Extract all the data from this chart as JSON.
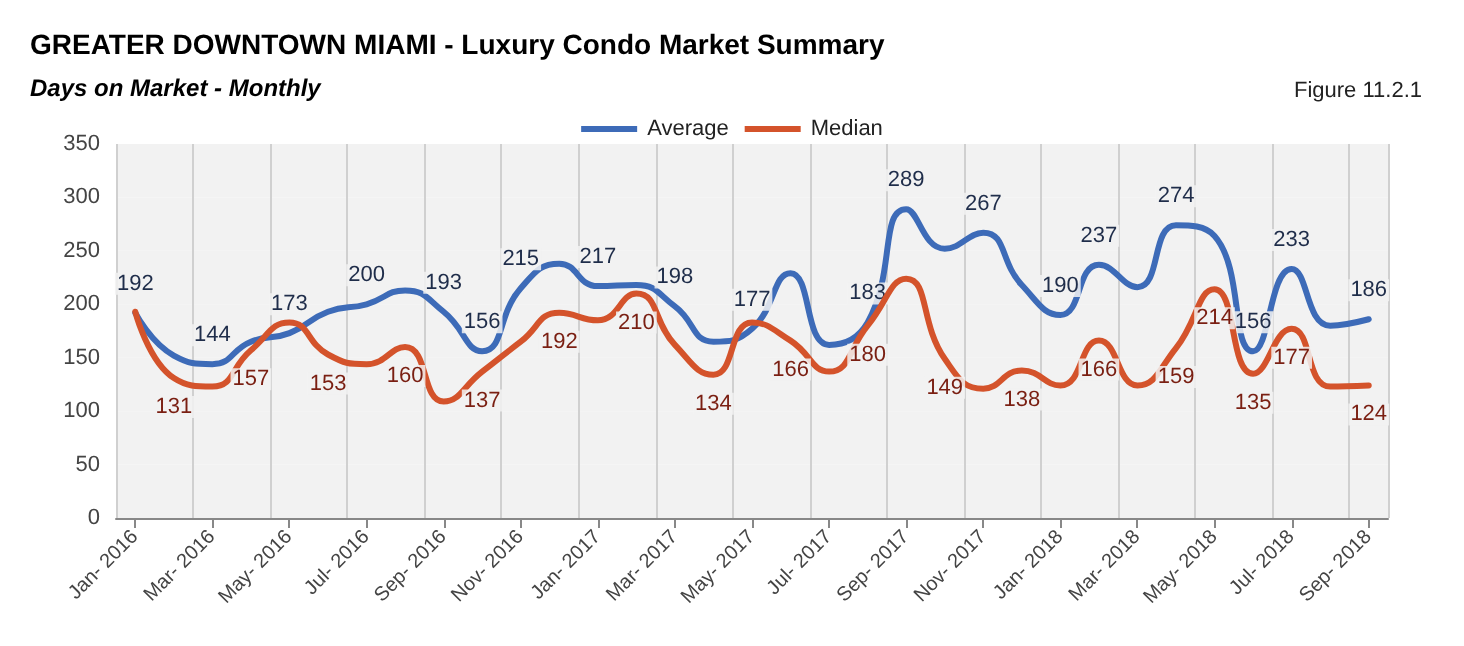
{
  "chart_data": {
    "type": "line",
    "title": "GREATER DOWNTOWN MIAMI - Luxury Condo Market Summary",
    "subtitle": "Days on Market - Monthly",
    "annotations": [
      "Figure 11.2.1"
    ],
    "categories": [
      "Jan- 2016",
      null,
      "Mar- 2016",
      null,
      "May- 2016",
      null,
      "Jul- 2016",
      null,
      "Sep- 2016",
      null,
      "Nov- 2016",
      null,
      "Jan- 2017",
      null,
      "Mar- 2017",
      null,
      "May- 2017",
      null,
      "Jul- 2017",
      null,
      "Sep- 2017",
      null,
      "Nov- 2017",
      null,
      "Jan- 2018",
      null,
      "Mar- 2018",
      null,
      "May- 2018",
      null,
      "Jul- 2018",
      null,
      "Sep- 2018"
    ],
    "series": [
      {
        "name": "Average",
        "color": "#3d6bb8",
        "values": [
          192,
          152,
          144,
          165,
          173,
          193,
          200,
          213,
          193,
          156,
          215,
          238,
          217,
          218,
          198,
          165,
          177,
          229,
          162,
          183,
          289,
          252,
          267,
          218,
          190,
          237,
          216,
          274,
          264,
          156,
          233,
          180,
          186
        ],
        "value_labels": [
          "192",
          null,
          "144",
          null,
          "173",
          null,
          "200",
          null,
          "193",
          "156",
          "215",
          null,
          "217",
          null,
          "198",
          null,
          "177",
          null,
          null,
          "183",
          "289",
          null,
          "267",
          null,
          "190",
          "237",
          null,
          "274",
          null,
          "156",
          "233",
          null,
          "186"
        ]
      },
      {
        "name": "Median",
        "color": "#d4532b",
        "values": [
          193,
          131,
          123,
          157,
          183,
          153,
          144,
          160,
          109,
          137,
          165,
          192,
          185,
          210,
          162,
          134,
          183,
          166,
          137,
          180,
          224,
          149,
          121,
          138,
          124,
          166,
          124,
          159,
          214,
          135,
          177,
          123,
          124
        ],
        "value_labels": [
          null,
          "131",
          null,
          "157",
          null,
          "153",
          null,
          "160",
          null,
          "137",
          null,
          "192",
          null,
          "210",
          null,
          "134",
          null,
          "166",
          null,
          "180",
          null,
          "149",
          null,
          "138",
          null,
          "166",
          null,
          "159",
          "214",
          "135",
          "177",
          null,
          "124"
        ]
      }
    ],
    "ylim": [
      0,
      350
    ],
    "yticks": [
      0,
      50,
      100,
      150,
      200,
      250,
      300,
      350
    ],
    "grid": "x",
    "legend": "top",
    "marker": "none",
    "line_style": "solid"
  }
}
